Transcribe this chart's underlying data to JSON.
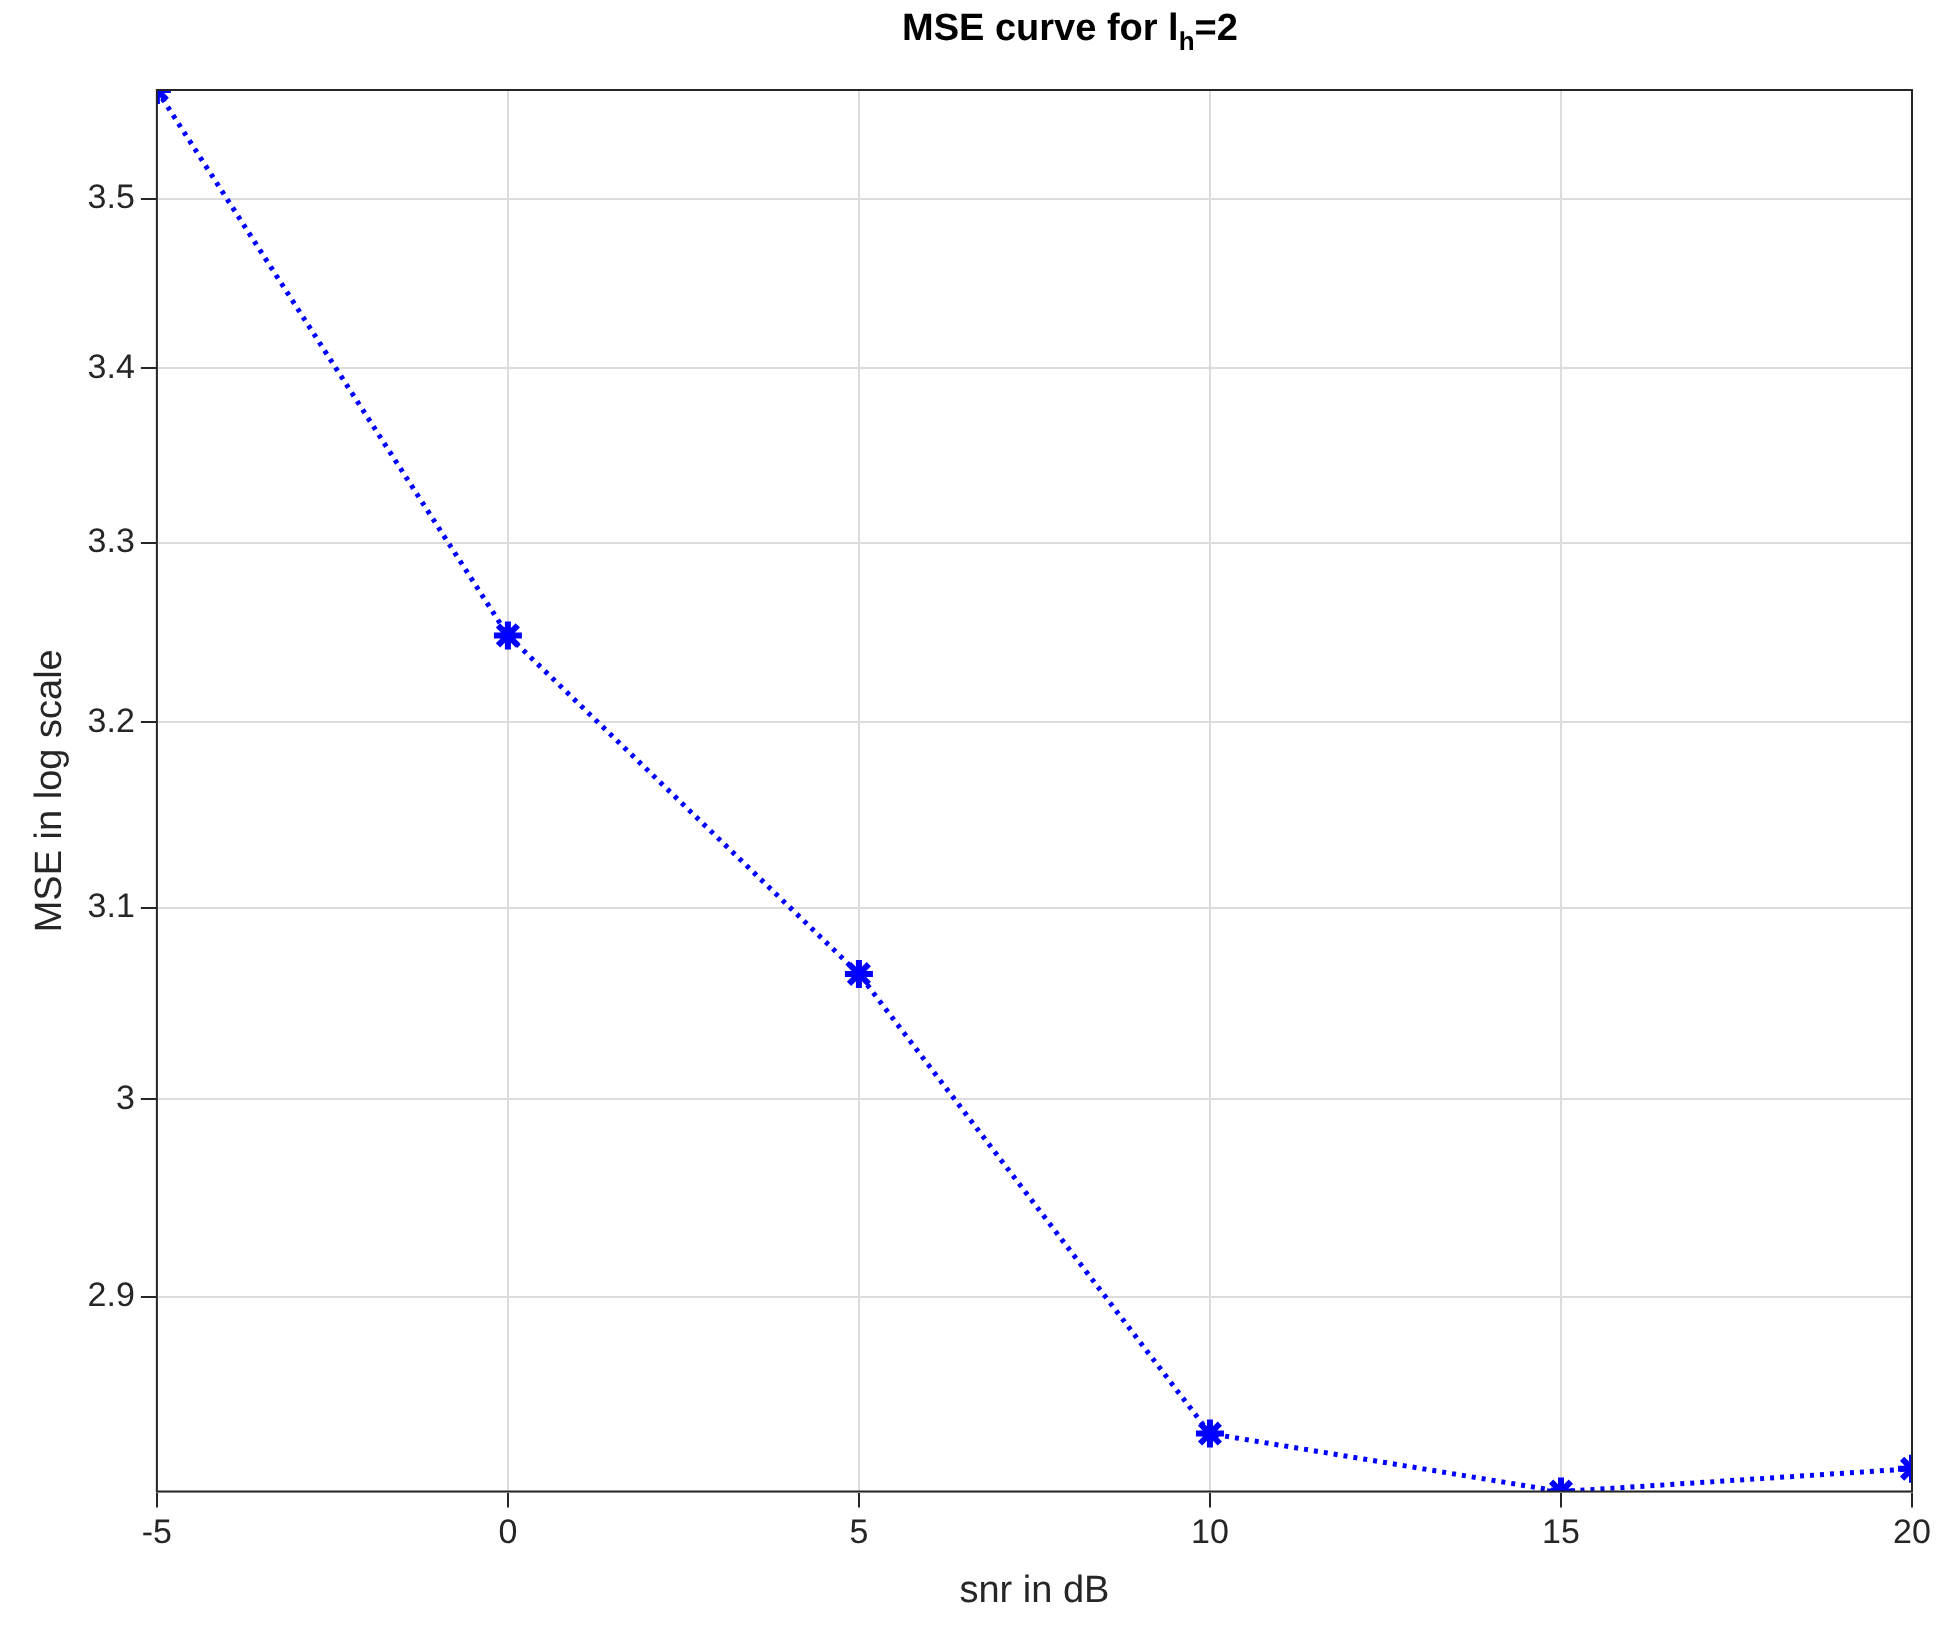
{
  "chart_data": {
    "type": "line",
    "title": "MSE curve for l$_{h}$=2",
    "xlabel": "snr in dB",
    "ylabel": "MSE in log scale",
    "x": [
      -5,
      0,
      5,
      10,
      15,
      20
    ],
    "series": [
      {
        "color": "#0000ff",
        "values": [
          3.566,
          3.248,
          3.065,
          2.833,
          2.805,
          2.816
        ]
      }
    ],
    "xlim": [
      -5,
      20
    ],
    "xticks": [
      -5,
      0,
      5,
      10,
      15,
      20
    ],
    "ylim": [
      2.805,
      3.566
    ],
    "yticks": [
      2.9,
      3,
      3.1,
      3.2,
      3.3,
      3.4,
      3.5
    ],
    "log": "y",
    "grid": true,
    "legend": false,
    "marker": "cross",
    "line_style": "dotted"
  }
}
